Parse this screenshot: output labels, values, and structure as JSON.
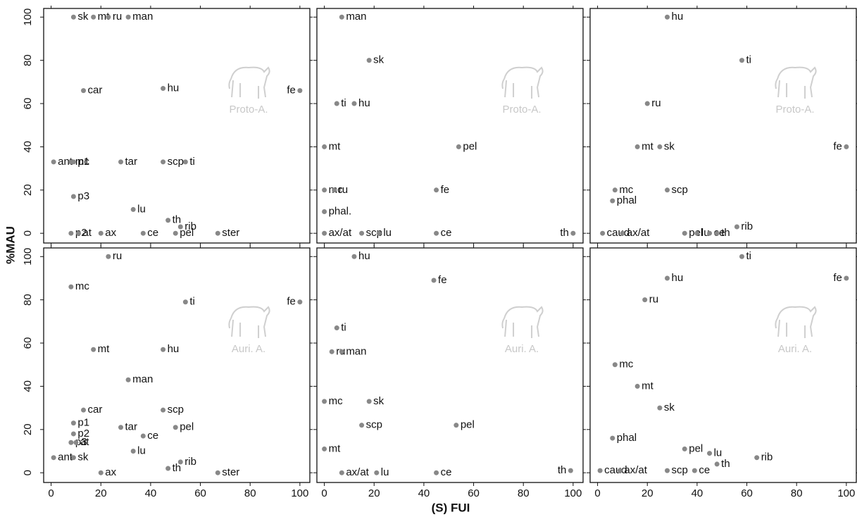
{
  "shared": {
    "xlabel": "(S) FUI",
    "ylabel": "%MAU"
  },
  "chart_data": [
    {
      "type": "scatter",
      "annotation": "Proto-A.",
      "xlim": [
        -3,
        104
      ],
      "ylim": [
        -4.5,
        104
      ],
      "xticks": [
        0,
        20,
        40,
        60,
        80,
        100
      ],
      "yticks": [
        0,
        20,
        40,
        60,
        80,
        100
      ],
      "color": "#888888",
      "point_labels": [
        "sk",
        "mt",
        "ru",
        "man",
        "car",
        "hu",
        "fe",
        "ant",
        "mc",
        "p1",
        "tar",
        "scp",
        "ti",
        "p3",
        "lu",
        "th",
        "rib",
        "p2",
        "at",
        "ax",
        "ce",
        "pel",
        "ster"
      ],
      "x": [
        9,
        17,
        23,
        31,
        13,
        45,
        100,
        1,
        8,
        9,
        28,
        45,
        54,
        9,
        33,
        47,
        52,
        8,
        11,
        20,
        37,
        50,
        67
      ],
      "values": [
        100,
        100,
        100,
        100,
        66,
        67,
        66,
        33,
        33,
        33,
        33,
        33,
        33,
        17,
        11,
        6,
        3,
        0,
        0,
        0,
        0,
        0,
        0
      ]
    },
    {
      "type": "scatter",
      "annotation": "Proto-A.",
      "xlim": [
        -3,
        104
      ],
      "ylim": [
        -4.5,
        104
      ],
      "xticks": [
        0,
        20,
        40,
        60,
        80,
        100
      ],
      "yticks": [
        0,
        20,
        40,
        60,
        80,
        100
      ],
      "color": "#888888",
      "point_labels": [
        "man",
        "sk",
        "ti",
        "hu",
        "mt",
        "pel",
        "mc",
        "ru",
        "fe",
        "phal.",
        "ax/at",
        "scp",
        "lu",
        "ce",
        "th"
      ],
      "x": [
        7,
        18,
        5,
        12,
        0,
        54,
        0,
        4,
        45,
        0,
        0,
        15,
        22,
        45,
        100
      ],
      "values": [
        100,
        80,
        60,
        60,
        40,
        40,
        20,
        20,
        20,
        10,
        0,
        0,
        0,
        0,
        0
      ]
    },
    {
      "type": "scatter",
      "annotation": "Proto-A.",
      "xlim": [
        -3,
        104
      ],
      "ylim": [
        -4.5,
        104
      ],
      "xticks": [
        0,
        20,
        40,
        60,
        80,
        100
      ],
      "yticks": [
        0,
        20,
        40,
        60,
        80,
        100
      ],
      "color": "#888888",
      "point_labels": [
        "hu",
        "ti",
        "ru",
        "fe",
        "mt",
        "sk",
        "mc",
        "scp",
        "phal",
        "caud",
        "ax/at",
        "pel",
        "lu",
        "ce",
        "th",
        "rib"
      ],
      "x": [
        28,
        58,
        20,
        100,
        16,
        25,
        7,
        28,
        6,
        2,
        10,
        35,
        40,
        45,
        48,
        56
      ],
      "values": [
        100,
        80,
        60,
        40,
        40,
        40,
        20,
        20,
        15,
        0,
        0,
        0,
        0,
        0,
        0,
        3
      ]
    },
    {
      "type": "scatter",
      "annotation": "Auri. A.",
      "xlim": [
        -3,
        104
      ],
      "ylim": [
        -4.5,
        104
      ],
      "xticks": [
        0,
        20,
        40,
        60,
        80,
        100
      ],
      "yticks": [
        0,
        20,
        40,
        60,
        80,
        100
      ],
      "color": "#888888",
      "point_labels": [
        "ru",
        "mc",
        "ti",
        "fe",
        "mt",
        "hu",
        "man",
        "car",
        "scp",
        "p1",
        "tar",
        "pel",
        "p2",
        "ce",
        "p3",
        "at",
        "lu",
        "sk",
        "ant",
        "rib",
        "th",
        "ax",
        "ster"
      ],
      "x": [
        23,
        8,
        54,
        100,
        17,
        45,
        31,
        13,
        45,
        9,
        28,
        50,
        9,
        37,
        8,
        10,
        33,
        9,
        1,
        52,
        47,
        20,
        67
      ],
      "values": [
        100,
        86,
        79,
        79,
        57,
        57,
        43,
        29,
        29,
        23,
        21,
        21,
        18,
        17,
        14,
        14,
        10,
        7,
        7,
        5,
        2,
        0,
        0
      ]
    },
    {
      "type": "scatter",
      "annotation": "Auri. A.",
      "xlim": [
        -3,
        104
      ],
      "ylim": [
        -4.5,
        104
      ],
      "xticks": [
        0,
        20,
        40,
        60,
        80,
        100
      ],
      "yticks": [
        0,
        20,
        40,
        60,
        80,
        100
      ],
      "color": "#888888",
      "point_labels": [
        "hu",
        "fe",
        "ti",
        "ru",
        "man",
        "mc",
        "sk",
        "scp",
        "pel",
        "mt",
        "ax/at",
        "lu",
        "ce",
        "th"
      ],
      "x": [
        12,
        44,
        5,
        3,
        7,
        0,
        18,
        15,
        53,
        0,
        7,
        21,
        45,
        99
      ],
      "values": [
        100,
        89,
        67,
        56,
        56,
        33,
        33,
        22,
        22,
        11,
        0,
        0,
        0,
        1
      ]
    },
    {
      "type": "scatter",
      "annotation": "Auri. A.",
      "xlim": [
        -3,
        104
      ],
      "ylim": [
        -4.5,
        104
      ],
      "xticks": [
        0,
        20,
        40,
        60,
        80,
        100
      ],
      "yticks": [
        0,
        20,
        40,
        60,
        80,
        100
      ],
      "color": "#888888",
      "point_labels": [
        "ti",
        "hu",
        "fe",
        "ru",
        "mc",
        "mt",
        "sk",
        "phal",
        "pel",
        "lu",
        "th",
        "rib",
        "caud",
        "ax/at",
        "scp",
        "ce"
      ],
      "x": [
        58,
        28,
        100,
        19,
        7,
        16,
        25,
        6,
        35,
        45,
        48,
        64,
        1,
        9,
        28,
        39
      ],
      "values": [
        100,
        90,
        90,
        80,
        50,
        40,
        30,
        16,
        11,
        9,
        4,
        7,
        1,
        1,
        1,
        1
      ]
    }
  ]
}
